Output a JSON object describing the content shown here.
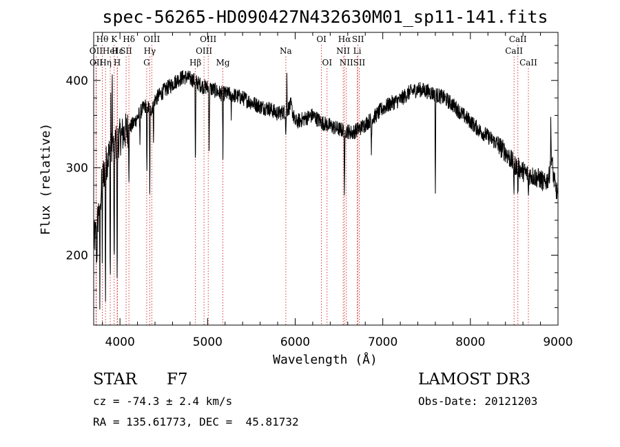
{
  "chart_data": {
    "type": "line",
    "title": "spec-56265-HD090427N432630M01_sp11-141.fits",
    "xlabel": "Wavelength (Å)",
    "ylabel": "Flux (relative)",
    "xlim": [
      3700,
      9000
    ],
    "ylim": [
      120,
      455
    ],
    "xticks": [
      4000,
      5000,
      6000,
      7000,
      8000,
      9000
    ],
    "yticks": [
      200,
      300,
      400
    ],
    "grid": false,
    "line_color": "#000000",
    "marker_color": "#cc0000",
    "spectrum_anchors": {
      "x": [
        3700,
        3720,
        3740,
        3760,
        3780,
        3800,
        3830,
        3860,
        3890,
        3920,
        3950,
        3980,
        4000,
        4050,
        4100,
        4150,
        4200,
        4250,
        4300,
        4330,
        4350,
        4400,
        4450,
        4500,
        4550,
        4600,
        4650,
        4700,
        4750,
        4800,
        4850,
        4900,
        4950,
        5000,
        5050,
        5100,
        5150,
        5200,
        5250,
        5300,
        5400,
        5500,
        5600,
        5700,
        5800,
        5900,
        5950,
        6000,
        6100,
        6200,
        6300,
        6400,
        6500,
        6550,
        6600,
        6650,
        6700,
        6750,
        6800,
        6900,
        7000,
        7100,
        7200,
        7300,
        7400,
        7500,
        7600,
        7700,
        7800,
        7900,
        8000,
        8100,
        8200,
        8300,
        8400,
        8500,
        8550,
        8600,
        8650,
        8700,
        8800,
        8850,
        8900,
        8920,
        8950,
        9000
      ],
      "y": [
        215,
        222,
        232,
        255,
        268,
        288,
        300,
        312,
        318,
        322,
        328,
        332,
        335,
        340,
        345,
        350,
        358,
        366,
        372,
        368,
        365,
        378,
        383,
        388,
        392,
        396,
        400,
        403,
        404,
        402,
        400,
        396,
        393,
        392,
        390,
        388,
        385,
        385,
        384,
        383,
        380,
        375,
        370,
        368,
        362,
        365,
        372,
        352,
        356,
        360,
        352,
        348,
        344,
        343,
        342,
        340,
        343,
        346,
        350,
        358,
        368,
        374,
        378,
        386,
        390,
        388,
        384,
        380,
        372,
        362,
        353,
        343,
        336,
        328,
        318,
        304,
        300,
        296,
        293,
        291,
        287,
        282,
        290,
        320,
        288,
        266
      ]
    },
    "absorption_features": [
      {
        "x": 3735,
        "depth": 40
      },
      {
        "x": 3770,
        "depth": 120
      },
      {
        "x": 3798,
        "depth": 90
      },
      {
        "x": 3835,
        "depth": 150
      },
      {
        "x": 3889,
        "depth": 165
      },
      {
        "x": 3934,
        "depth": 175
      },
      {
        "x": 3968,
        "depth": 185
      },
      {
        "x": 4102,
        "depth": 60
      },
      {
        "x": 4227,
        "depth": 35
      },
      {
        "x": 4307,
        "depth": 90
      },
      {
        "x": 4340,
        "depth": 100
      },
      {
        "x": 4383,
        "depth": 40
      },
      {
        "x": 4861,
        "depth": 110
      },
      {
        "x": 5018,
        "depth": 75
      },
      {
        "x": 5175,
        "depth": 75
      },
      {
        "x": 5270,
        "depth": 25
      },
      {
        "x": 5893,
        "depth": 30
      },
      {
        "x": 6563,
        "depth": 90
      },
      {
        "x": 6870,
        "depth": 40
      },
      {
        "x": 7600,
        "depth": 115
      },
      {
        "x": 8498,
        "depth": 35
      },
      {
        "x": 8542,
        "depth": 35
      },
      {
        "x": 8662,
        "depth": 30
      }
    ],
    "emission_features": [
      {
        "x": 3912,
        "height": 90
      },
      {
        "x": 3895,
        "height": 60
      },
      {
        "x": 5905,
        "height": 40
      },
      {
        "x": 8918,
        "height": 35
      }
    ],
    "spectral_lines": [
      {
        "label": "Hθ",
        "x": 3798,
        "row": 0
      },
      {
        "label": "K",
        "x": 3934,
        "row": 0
      },
      {
        "label": "Hδ",
        "x": 4102,
        "row": 0
      },
      {
        "label": "OIII",
        "x": 4363,
        "row": 0
      },
      {
        "label": "OIII",
        "x": 5007,
        "row": 0
      },
      {
        "label": "OI",
        "x": 6300,
        "row": 0
      },
      {
        "label": "Hα",
        "x": 6563,
        "row": 0
      },
      {
        "label": "SII",
        "x": 6717,
        "row": 0
      },
      {
        "label": "CaII",
        "x": 8542,
        "row": 0
      },
      {
        "label": "OII",
        "x": 3727,
        "row": 1
      },
      {
        "label": "Hε",
        "x": 3970,
        "row": 1
      },
      {
        "label": "HeI",
        "x": 3889,
        "row": 1
      },
      {
        "label": "SII",
        "x": 4070,
        "row": 1
      },
      {
        "label": "Hγ",
        "x": 4340,
        "row": 1
      },
      {
        "label": "OIII",
        "x": 4959,
        "row": 1
      },
      {
        "label": "Na",
        "x": 5893,
        "row": 1
      },
      {
        "label": "NII",
        "x": 6548,
        "row": 1
      },
      {
        "label": "Li",
        "x": 6708,
        "row": 1
      },
      {
        "label": "CaII",
        "x": 8498,
        "row": 1
      },
      {
        "label": "OII",
        "x": 3729,
        "row": 2
      },
      {
        "label": "Hη",
        "x": 3835,
        "row": 2
      },
      {
        "label": "H",
        "x": 3968,
        "row": 2
      },
      {
        "label": "G",
        "x": 4305,
        "row": 2
      },
      {
        "label": "Hβ",
        "x": 4861,
        "row": 2
      },
      {
        "label": "Mg",
        "x": 5175,
        "row": 2
      },
      {
        "label": "OI",
        "x": 6364,
        "row": 2
      },
      {
        "label": "NII",
        "x": 6584,
        "row": 2
      },
      {
        "label": "SII",
        "x": 6731,
        "row": 2
      },
      {
        "label": "CaII",
        "x": 8662,
        "row": 2
      }
    ]
  },
  "footer": {
    "object_class": "STAR",
    "subclass": "F7",
    "redshift": "cz = -74.3 ± 2.4 km/s",
    "coords": "RA = 135.61773, DEC =  45.81732",
    "survey": "LAMOST DR3",
    "obs_date": "Obs-Date: 20121203"
  }
}
